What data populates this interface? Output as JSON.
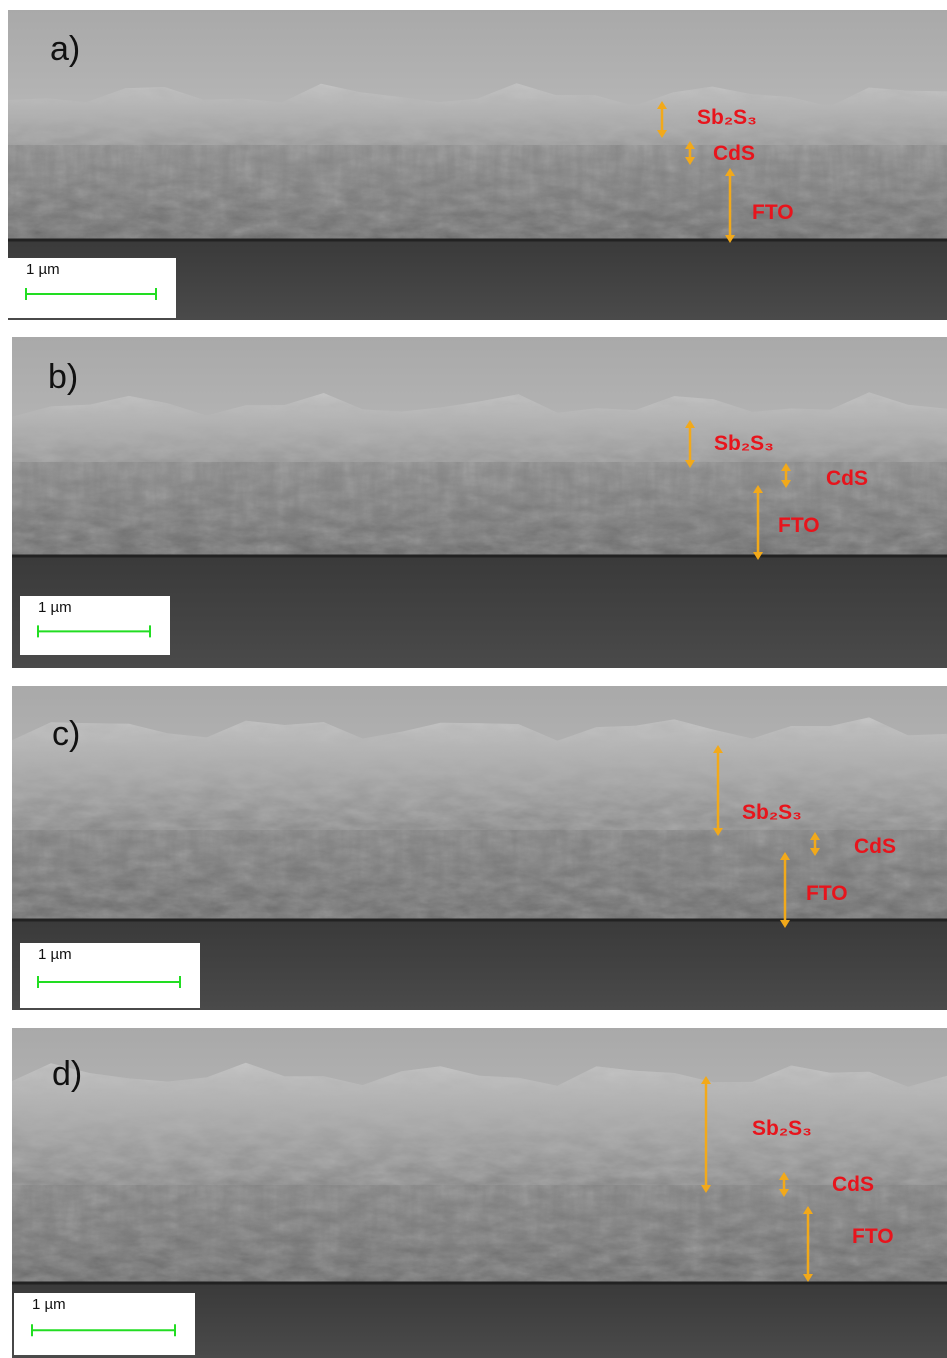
{
  "panels": [
    {
      "label": "a)",
      "layers": [
        "Sb₂S₃",
        "CdS",
        "FTO"
      ],
      "scale_bar": "1 µm"
    },
    {
      "label": "b)",
      "layers": [
        "Sb₂S₃",
        "CdS",
        "FTO"
      ],
      "scale_bar": "1 µm"
    },
    {
      "label": "c)",
      "layers": [
        "Sb₂S₃",
        "CdS",
        "FTO"
      ],
      "scale_bar": "1 µm"
    },
    {
      "label": "d)",
      "layers": [
        "Sb₂S₃",
        "CdS",
        "FTO"
      ],
      "scale_bar": "1 µm"
    }
  ]
}
